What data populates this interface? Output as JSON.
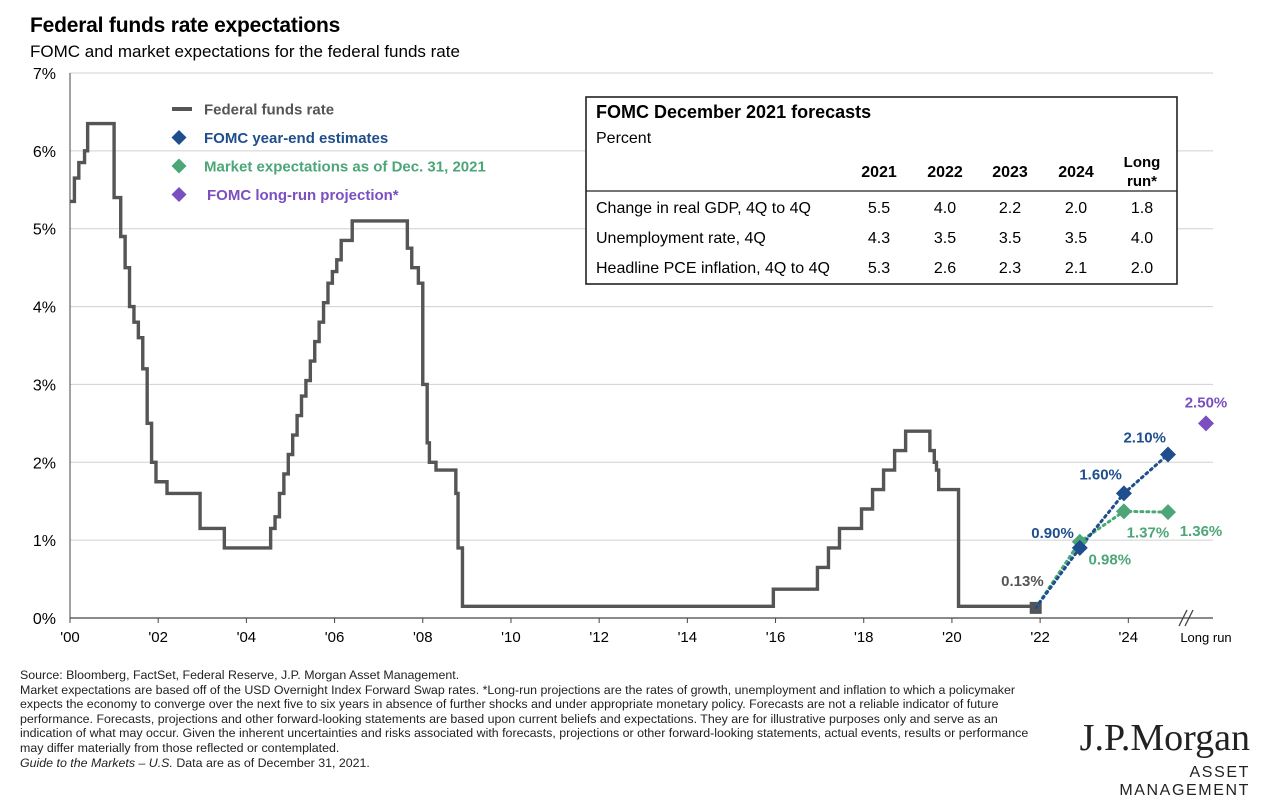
{
  "header": {
    "title": "Federal funds rate expectations",
    "subtitle": "FOMC and market expectations for the federal funds rate"
  },
  "colors": {
    "fed_funds": "#555555",
    "fomc": "#1F4E8C",
    "market": "#4CA677",
    "longrun": "#7B4FC0",
    "grid": "#D0D0D0"
  },
  "chart_data": {
    "type": "line",
    "ylim": [
      0,
      7
    ],
    "y_ticks": [
      "0%",
      "1%",
      "2%",
      "3%",
      "4%",
      "5%",
      "6%",
      "7%"
    ],
    "xlim": [
      2000,
      2024.9
    ],
    "x_ticks": [
      "'00",
      "'02",
      "'04",
      "'06",
      "'08",
      "'10",
      "'12",
      "'14",
      "'16",
      "'18",
      "'20",
      "'22",
      "'24"
    ],
    "x_extra_label": "Long run",
    "grid": true,
    "legend_position": "top-left",
    "legend": [
      {
        "label": "Federal funds rate",
        "marker": "line",
        "color_key": "fed_funds"
      },
      {
        "label": "FOMC year-end estimates",
        "marker": "diamond",
        "color_key": "fomc"
      },
      {
        "label": "Market expectations as of Dec. 31, 2021",
        "marker": "diamond",
        "color_key": "market"
      },
      {
        "label": "FOMC long-run projection*",
        "marker": "diamond",
        "color_key": "longrun"
      }
    ],
    "series": [
      {
        "name": "Federal funds rate",
        "step": true,
        "points": [
          [
            2000.0,
            5.35
          ],
          [
            2000.1,
            5.65
          ],
          [
            2000.2,
            5.85
          ],
          [
            2000.33,
            6.0
          ],
          [
            2000.4,
            6.35
          ],
          [
            2000.95,
            6.35
          ],
          [
            2001.0,
            5.4
          ],
          [
            2001.1,
            5.4
          ],
          [
            2001.15,
            4.9
          ],
          [
            2001.25,
            4.5
          ],
          [
            2001.35,
            4.0
          ],
          [
            2001.45,
            3.8
          ],
          [
            2001.55,
            3.6
          ],
          [
            2001.65,
            3.2
          ],
          [
            2001.75,
            2.5
          ],
          [
            2001.85,
            2.0
          ],
          [
            2001.95,
            1.75
          ],
          [
            2002.2,
            1.6
          ],
          [
            2002.9,
            1.6
          ],
          [
            2002.95,
            1.15
          ],
          [
            2003.45,
            1.15
          ],
          [
            2003.5,
            0.9
          ],
          [
            2004.45,
            0.9
          ],
          [
            2004.55,
            1.15
          ],
          [
            2004.65,
            1.3
          ],
          [
            2004.75,
            1.6
          ],
          [
            2004.85,
            1.85
          ],
          [
            2004.95,
            2.1
          ],
          [
            2005.05,
            2.35
          ],
          [
            2005.15,
            2.6
          ],
          [
            2005.25,
            2.85
          ],
          [
            2005.35,
            3.05
          ],
          [
            2005.45,
            3.3
          ],
          [
            2005.55,
            3.55
          ],
          [
            2005.65,
            3.8
          ],
          [
            2005.75,
            4.05
          ],
          [
            2005.85,
            4.3
          ],
          [
            2005.95,
            4.45
          ],
          [
            2006.05,
            4.6
          ],
          [
            2006.15,
            4.85
          ],
          [
            2006.4,
            5.1
          ],
          [
            2007.6,
            5.1
          ],
          [
            2007.65,
            4.75
          ],
          [
            2007.75,
            4.5
          ],
          [
            2007.9,
            4.3
          ],
          [
            2008.0,
            3.0
          ],
          [
            2008.1,
            2.25
          ],
          [
            2008.15,
            2.0
          ],
          [
            2008.3,
            1.9
          ],
          [
            2008.7,
            1.9
          ],
          [
            2008.75,
            1.6
          ],
          [
            2008.8,
            0.9
          ],
          [
            2008.9,
            0.15
          ],
          [
            2015.9,
            0.15
          ],
          [
            2015.95,
            0.37
          ],
          [
            2016.9,
            0.37
          ],
          [
            2016.95,
            0.65
          ],
          [
            2017.1,
            0.65
          ],
          [
            2017.2,
            0.9
          ],
          [
            2017.4,
            0.9
          ],
          [
            2017.45,
            1.15
          ],
          [
            2017.9,
            1.15
          ],
          [
            2017.95,
            1.4
          ],
          [
            2018.15,
            1.4
          ],
          [
            2018.2,
            1.65
          ],
          [
            2018.4,
            1.65
          ],
          [
            2018.45,
            1.9
          ],
          [
            2018.65,
            1.9
          ],
          [
            2018.7,
            2.15
          ],
          [
            2018.9,
            2.15
          ],
          [
            2018.95,
            2.4
          ],
          [
            2019.45,
            2.4
          ],
          [
            2019.5,
            2.15
          ],
          [
            2019.6,
            2.0
          ],
          [
            2019.65,
            1.9
          ],
          [
            2019.7,
            1.65
          ],
          [
            2020.1,
            1.65
          ],
          [
            2020.15,
            0.15
          ],
          [
            2021.9,
            0.15
          ]
        ]
      },
      {
        "name": "FOMC year-end estimates",
        "points": [
          [
            2021.9,
            0.13
          ],
          [
            2022.9,
            0.9
          ],
          [
            2023.9,
            1.6
          ],
          [
            2024.9,
            2.1
          ]
        ],
        "labels": [
          "0.13%",
          "0.90%",
          "1.60%",
          "2.10%"
        ]
      },
      {
        "name": "Market expectations as of Dec. 31, 2021",
        "points": [
          [
            2021.9,
            0.13
          ],
          [
            2022.9,
            0.98
          ],
          [
            2023.9,
            1.37
          ],
          [
            2024.9,
            1.36
          ]
        ],
        "labels": [
          "",
          "0.98%",
          "1.37%",
          "1.36%"
        ]
      },
      {
        "name": "FOMC long-run projection*",
        "points": [
          [
            "Long run",
            2.5
          ]
        ],
        "labels": [
          "2.50%"
        ]
      }
    ],
    "table": {
      "title": "FOMC December 2021 forecasts",
      "subtitle": "Percent",
      "columns": [
        "2021",
        "2022",
        "2023",
        "2024",
        "Long",
        "run*"
      ],
      "rows": [
        {
          "label": "Change in real GDP, 4Q to 4Q",
          "values": [
            "5.5",
            "4.0",
            "2.2",
            "2.0",
            "1.8"
          ]
        },
        {
          "label": "Unemployment rate, 4Q",
          "values": [
            "4.3",
            "3.5",
            "3.5",
            "3.5",
            "4.0"
          ]
        },
        {
          "label": "Headline PCE inflation, 4Q to 4Q",
          "values": [
            "5.3",
            "2.6",
            "2.3",
            "2.1",
            "2.0"
          ]
        }
      ]
    }
  },
  "footer": {
    "source": "Source: Bloomberg, FactSet, Federal Reserve, J.P. Morgan Asset Management.",
    "note": "Market expectations are based off of the USD Overnight Index Forward Swap rates. *Long-run projections are the rates of growth, unemployment and inflation to which a policymaker expects the economy to converge over the next five to six years in absence of further shocks and under appropriate monetary policy. Forecasts are not a reliable indicator of future performance. Forecasts, projections and other forward-looking statements are based upon current beliefs and expectations. They are for illustrative purposes only and serve as an indication of what may occur. Given the inherent uncertainties and risks associated with forecasts, projections or other forward-looking statements, actual events, results or performance may differ materially from those reflected or contemplated.",
    "guide": "Guide to the Markets – U.S.",
    "date": " Data are as of December 31, 2021."
  },
  "logo": {
    "name": "J.P.Morgan",
    "tagline": "ASSET MANAGEMENT"
  }
}
